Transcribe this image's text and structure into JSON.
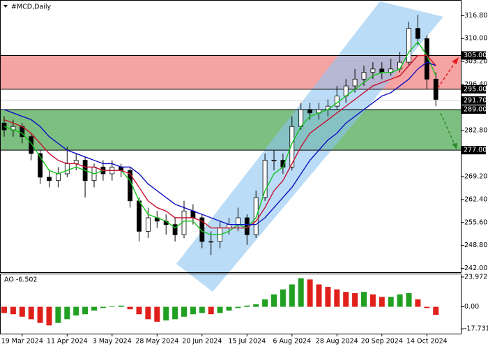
{
  "chart_data": {
    "type": "candlestick",
    "title": "#MCD,Daily",
    "categories": [
      null,
      null,
      "19 Mar 2024",
      null,
      null,
      null,
      null,
      "11 Apr 2024",
      null,
      null,
      null,
      null,
      "3 May 2024",
      null,
      null,
      null,
      null,
      "28 May 2024",
      null,
      null,
      null,
      null,
      "20 Jun 2024",
      null,
      null,
      null,
      null,
      "15 Jul 2024",
      null,
      null,
      null,
      null,
      "6 Aug 2024",
      null,
      null,
      null,
      null,
      "28 Aug 2024",
      null,
      null,
      null,
      null,
      "20 Sep 2024",
      null,
      null,
      null,
      null,
      "14 Oct 2024",
      null
    ],
    "open": [
      285,
      283,
      284,
      281,
      276,
      269,
      268,
      270,
      273,
      274,
      268,
      272,
      270,
      272,
      271,
      262,
      253,
      257,
      256,
      255,
      252,
      259,
      257,
      250,
      250,
      254,
      255,
      257,
      252,
      263,
      274,
      274,
      272,
      284,
      289,
      288,
      289,
      290,
      293,
      296,
      298,
      300,
      301,
      300,
      301,
      303,
      313,
      310,
      298
    ],
    "high": [
      287,
      286,
      285,
      282,
      277,
      271,
      272,
      278,
      276,
      275,
      273,
      274,
      274,
      273,
      272,
      263,
      260,
      259,
      258,
      257,
      262,
      261,
      258,
      253,
      256,
      257,
      260,
      258,
      265,
      276,
      277,
      276,
      287,
      291,
      291,
      291,
      292,
      296,
      298,
      301,
      302,
      303,
      303,
      304,
      306,
      315,
      317,
      311,
      300
    ],
    "low": [
      281,
      281,
      279,
      274,
      267,
      266,
      266,
      269,
      271,
      263,
      266,
      268,
      268,
      269,
      260,
      250,
      251,
      254,
      252,
      250,
      251,
      255,
      248,
      246,
      248,
      252,
      253,
      249,
      251,
      262,
      271,
      270,
      271,
      283,
      286,
      286,
      287,
      289,
      291,
      294,
      296,
      298,
      298,
      299,
      300,
      302,
      308,
      295,
      290
    ],
    "close": [
      283,
      284,
      281,
      276,
      269,
      268,
      270,
      273,
      274,
      268,
      272,
      270,
      272,
      271,
      262,
      253,
      257,
      256,
      255,
      252,
      259,
      257,
      250,
      250,
      254,
      255,
      257,
      252,
      263,
      274,
      274,
      272,
      284,
      289,
      288,
      289,
      290,
      293,
      296,
      298,
      300,
      301,
      300,
      301,
      303,
      313,
      310,
      298,
      292
    ],
    "ylim": [
      240.9,
      321.4
    ],
    "yticks": [
      {
        "value": 242,
        "label": "242.00"
      },
      {
        "value": 248.8,
        "label": "248.80"
      },
      {
        "value": 255.6,
        "label": "255.60"
      },
      {
        "value": 262.4,
        "label": "262.40"
      },
      {
        "value": 269.2,
        "label": "269.20"
      },
      {
        "value": 282.8,
        "label": "282.80"
      },
      {
        "value": 296.4,
        "label": "296.40"
      },
      {
        "value": 303.2,
        "label": "303.20"
      },
      {
        "value": 310,
        "label": "310.00"
      },
      {
        "value": 316.8,
        "label": "316.80"
      }
    ],
    "zones": [
      {
        "color": "#f5a3a3",
        "from": {
          "value": 305,
          "label": "305.00"
        },
        "to": {
          "value": 295,
          "label": "295.00"
        }
      },
      {
        "color": "#7dbf80",
        "from": {
          "value": 289,
          "label": "289.00"
        },
        "to": {
          "value": 277,
          "label": "277.00"
        }
      }
    ],
    "last_price": {
      "value": 291.7,
      "label": "291.70"
    },
    "moving_averages": [
      {
        "color": "#16c41c",
        "values": [
          284,
          283,
          282,
          279,
          275,
          271,
          270,
          271,
          272,
          271,
          270,
          271,
          271,
          271,
          268,
          262,
          258,
          257,
          256,
          254,
          256,
          256,
          253,
          252,
          252,
          253,
          255,
          254,
          257,
          265,
          270,
          272,
          279,
          284,
          287,
          288,
          289,
          291,
          293,
          295,
          297,
          299,
          300,
          300,
          301,
          306,
          309,
          305,
          299
        ]
      },
      {
        "color": "#c8102e",
        "values": [
          286,
          285,
          284,
          282,
          279,
          276,
          274,
          273,
          273,
          272,
          272,
          271,
          271,
          271,
          270,
          266,
          262,
          260,
          259,
          257,
          257,
          257,
          256,
          254,
          254,
          254,
          254,
          254,
          256,
          260,
          265,
          268,
          273,
          278,
          282,
          284,
          286,
          288,
          290,
          292,
          294,
          296,
          297,
          298,
          299,
          302,
          305,
          305,
          302
        ]
      },
      {
        "color": "#1010c0",
        "values": [
          289,
          288,
          287,
          286,
          284,
          281,
          279,
          277,
          276,
          275,
          274,
          273,
          273,
          272,
          272,
          270,
          267,
          265,
          263,
          261,
          260,
          259,
          258,
          257,
          256,
          255,
          255,
          255,
          255,
          257,
          260,
          263,
          266,
          270,
          274,
          277,
          280,
          282,
          285,
          287,
          289,
          291,
          293,
          294,
          296,
          298,
          301,
          303,
          302
        ]
      }
    ],
    "indicator": {
      "type": "bar",
      "label": "AO -6.502",
      "rising_color": "#22a022",
      "falling_color": "#e0201b",
      "values": [
        -5,
        -6,
        -8,
        -10,
        -13,
        -15,
        -13,
        -10,
        -7,
        -6,
        -3,
        -1,
        0.5,
        1,
        -2,
        -6,
        -10,
        -12,
        -11,
        -10,
        -8,
        -6,
        -5,
        -6,
        -5,
        -3,
        -1,
        1,
        2,
        6,
        10,
        14,
        18,
        23,
        22,
        18,
        16,
        14,
        12,
        11,
        12,
        10,
        8,
        8,
        10,
        11,
        6,
        -1,
        -6.502
      ],
      "ylim": [
        -21.6,
        26.7
      ],
      "yticks": [
        23.972,
        {
          "value": 0,
          "label": "0.00"
        },
        -17.731
      ]
    }
  }
}
